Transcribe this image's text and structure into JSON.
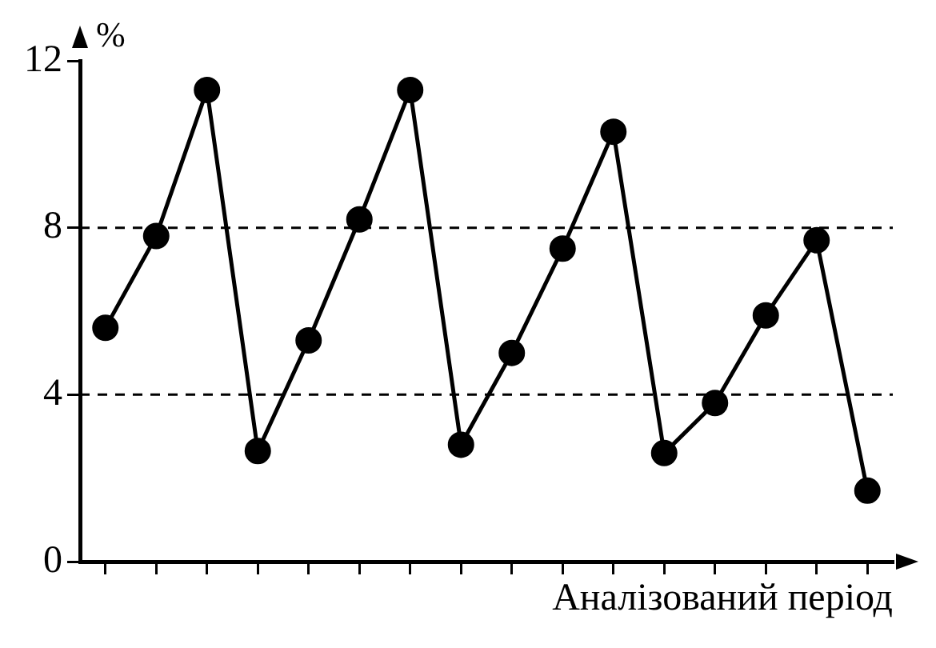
{
  "chart_data": {
    "type": "line",
    "xlabel": "Аналізований період",
    "ylabel": "%",
    "categories": [
      null,
      null,
      null,
      null,
      null,
      null,
      null,
      null,
      null,
      null,
      null,
      null,
      null,
      null,
      null,
      null
    ],
    "series": [
      {
        "color": "#000000",
        "values": [
          5.6,
          7.8,
          11.3,
          2.65,
          5.3,
          8.2,
          11.3,
          2.8,
          5.0,
          7.5,
          10.3,
          2.6,
          3.8,
          5.9,
          7.7,
          1.7
        ]
      }
    ],
    "ylim": [
      0,
      12
    ],
    "yticks": [
      0,
      4,
      8,
      12
    ],
    "grid": "y",
    "legend": false,
    "marker": "circle",
    "line_style": "solid"
  }
}
